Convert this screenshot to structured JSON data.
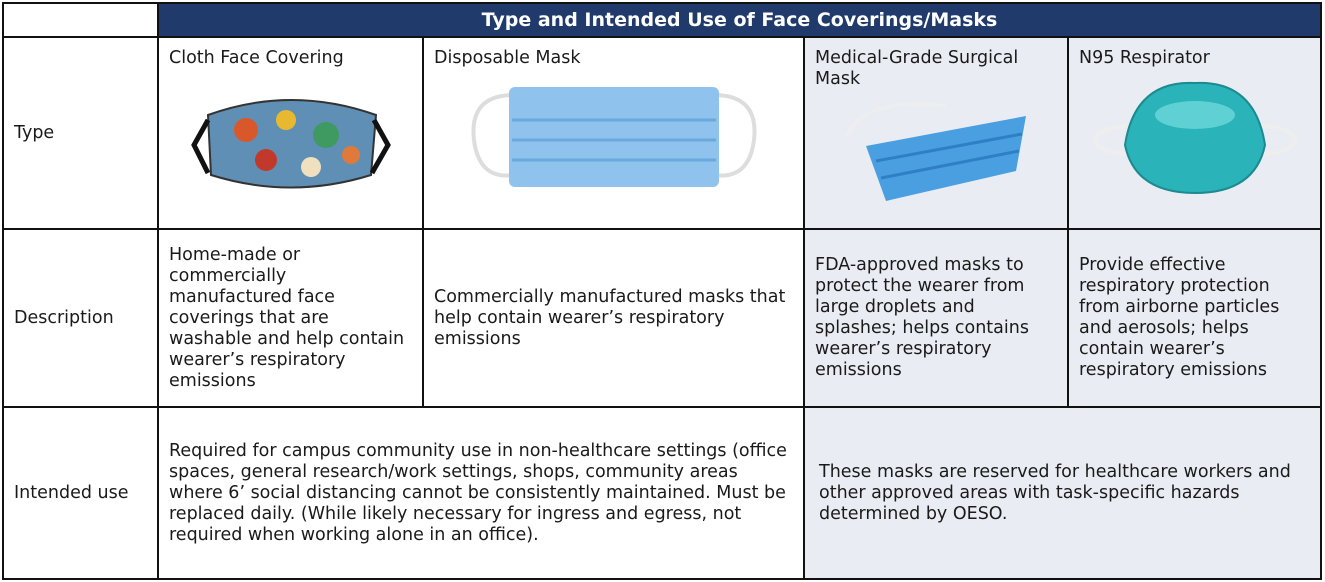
{
  "table": {
    "title": "Type and Intended Use of Face Coverings/Masks",
    "rows": [
      [
        "Type",
        "Cloth Face Covering",
        "Disposable Mask",
        "Medical-Grade Surgical Mask",
        "N95 Respirator"
      ],
      [
        "Description",
        "Home-made or commercially manufactured face coverings that are washable and help contain wearer’s respiratory emissions",
        "Commercially manufactured masks that help contain wearer’s respiratory emissions",
        "FDA-approved masks to protect the wearer from large droplets and splashes; helps contains wearer’s respiratory emissions",
        "Provide effective respiratory protection from airborne particles and aerosols; helps contain wearer’s respiratory emissions"
      ],
      [
        "Intended use",
        "Required for campus community use in non-healthcare settings (office spaces, general research/work settings, shops, community areas where 6’ social distancing cannot be consistently maintained. Must be replaced daily. (While likely necessary for ingress and egress, not required when working alone in an office).",
        "These masks are reserved for healthcare workers and other approved areas with task-specific hazards determined by OESO."
      ]
    ]
  }
}
